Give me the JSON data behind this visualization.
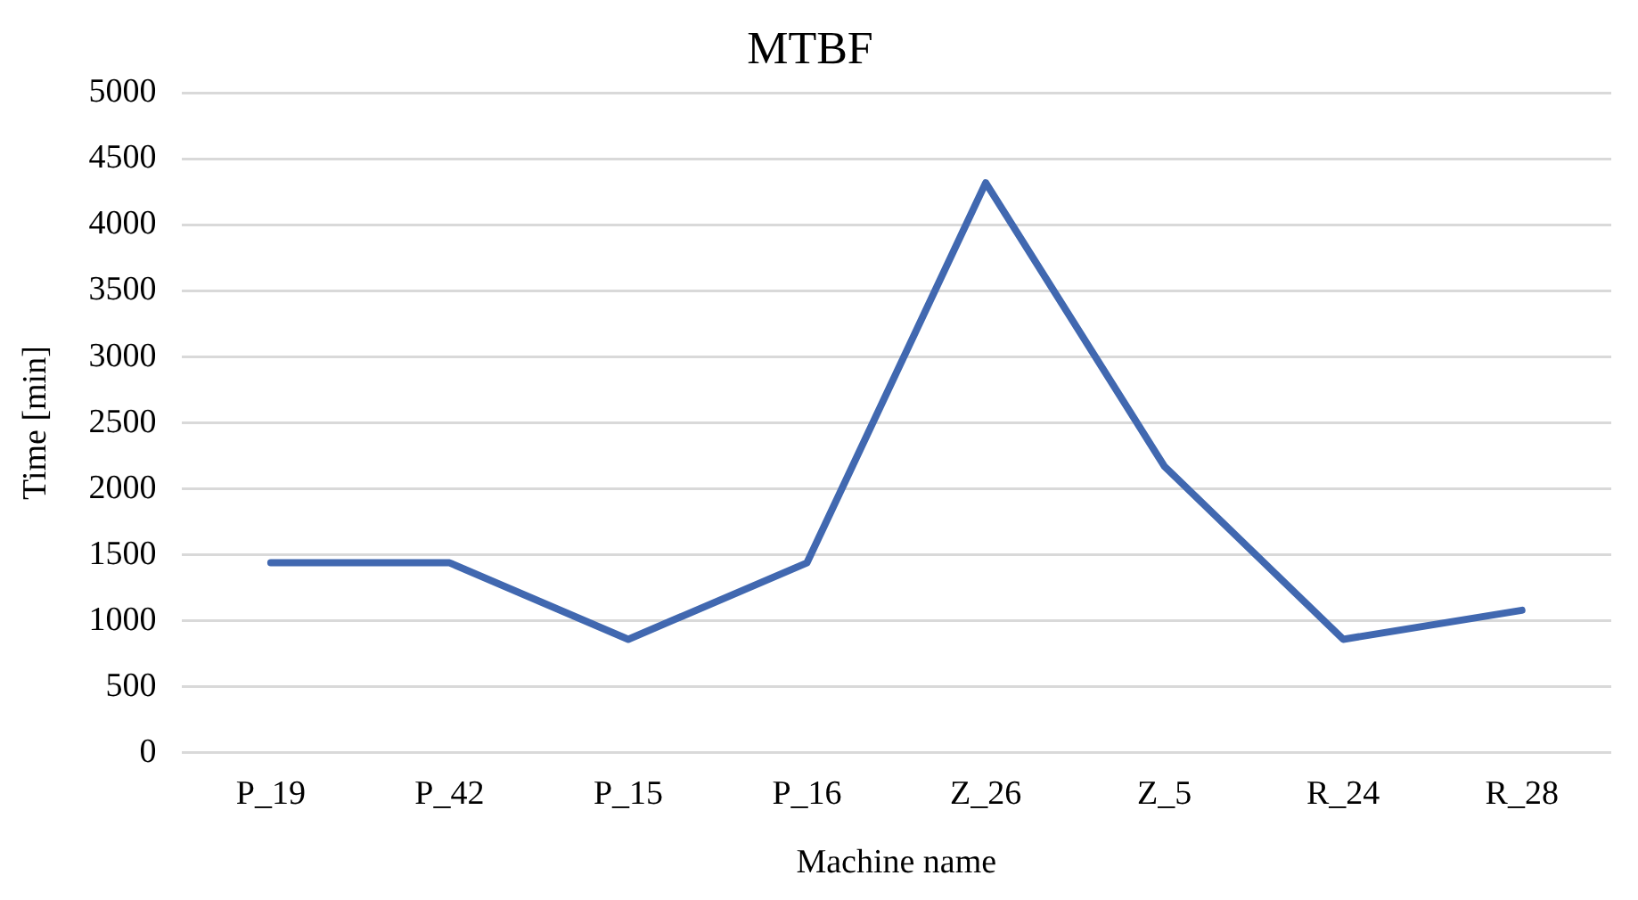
{
  "chart_data": {
    "type": "line",
    "title": "MTBF",
    "xlabel": "Machine name",
    "ylabel": "Time [min]",
    "categories": [
      "P_19",
      "P_42",
      "P_15",
      "P_16",
      "Z_26",
      "Z_5",
      "R_24",
      "R_28"
    ],
    "series": [
      {
        "color": "#4168b0",
        "values": [
          1440,
          1440,
          860,
          1440,
          4320,
          2170,
          860,
          1080
        ]
      }
    ],
    "ylim": [
      0,
      5000
    ],
    "yticks": [
      0,
      500,
      1000,
      1500,
      2000,
      2500,
      3000,
      3500,
      4000,
      4500,
      5000
    ],
    "grid": "y",
    "legend": false,
    "marker": "none",
    "line_style": "solid"
  }
}
